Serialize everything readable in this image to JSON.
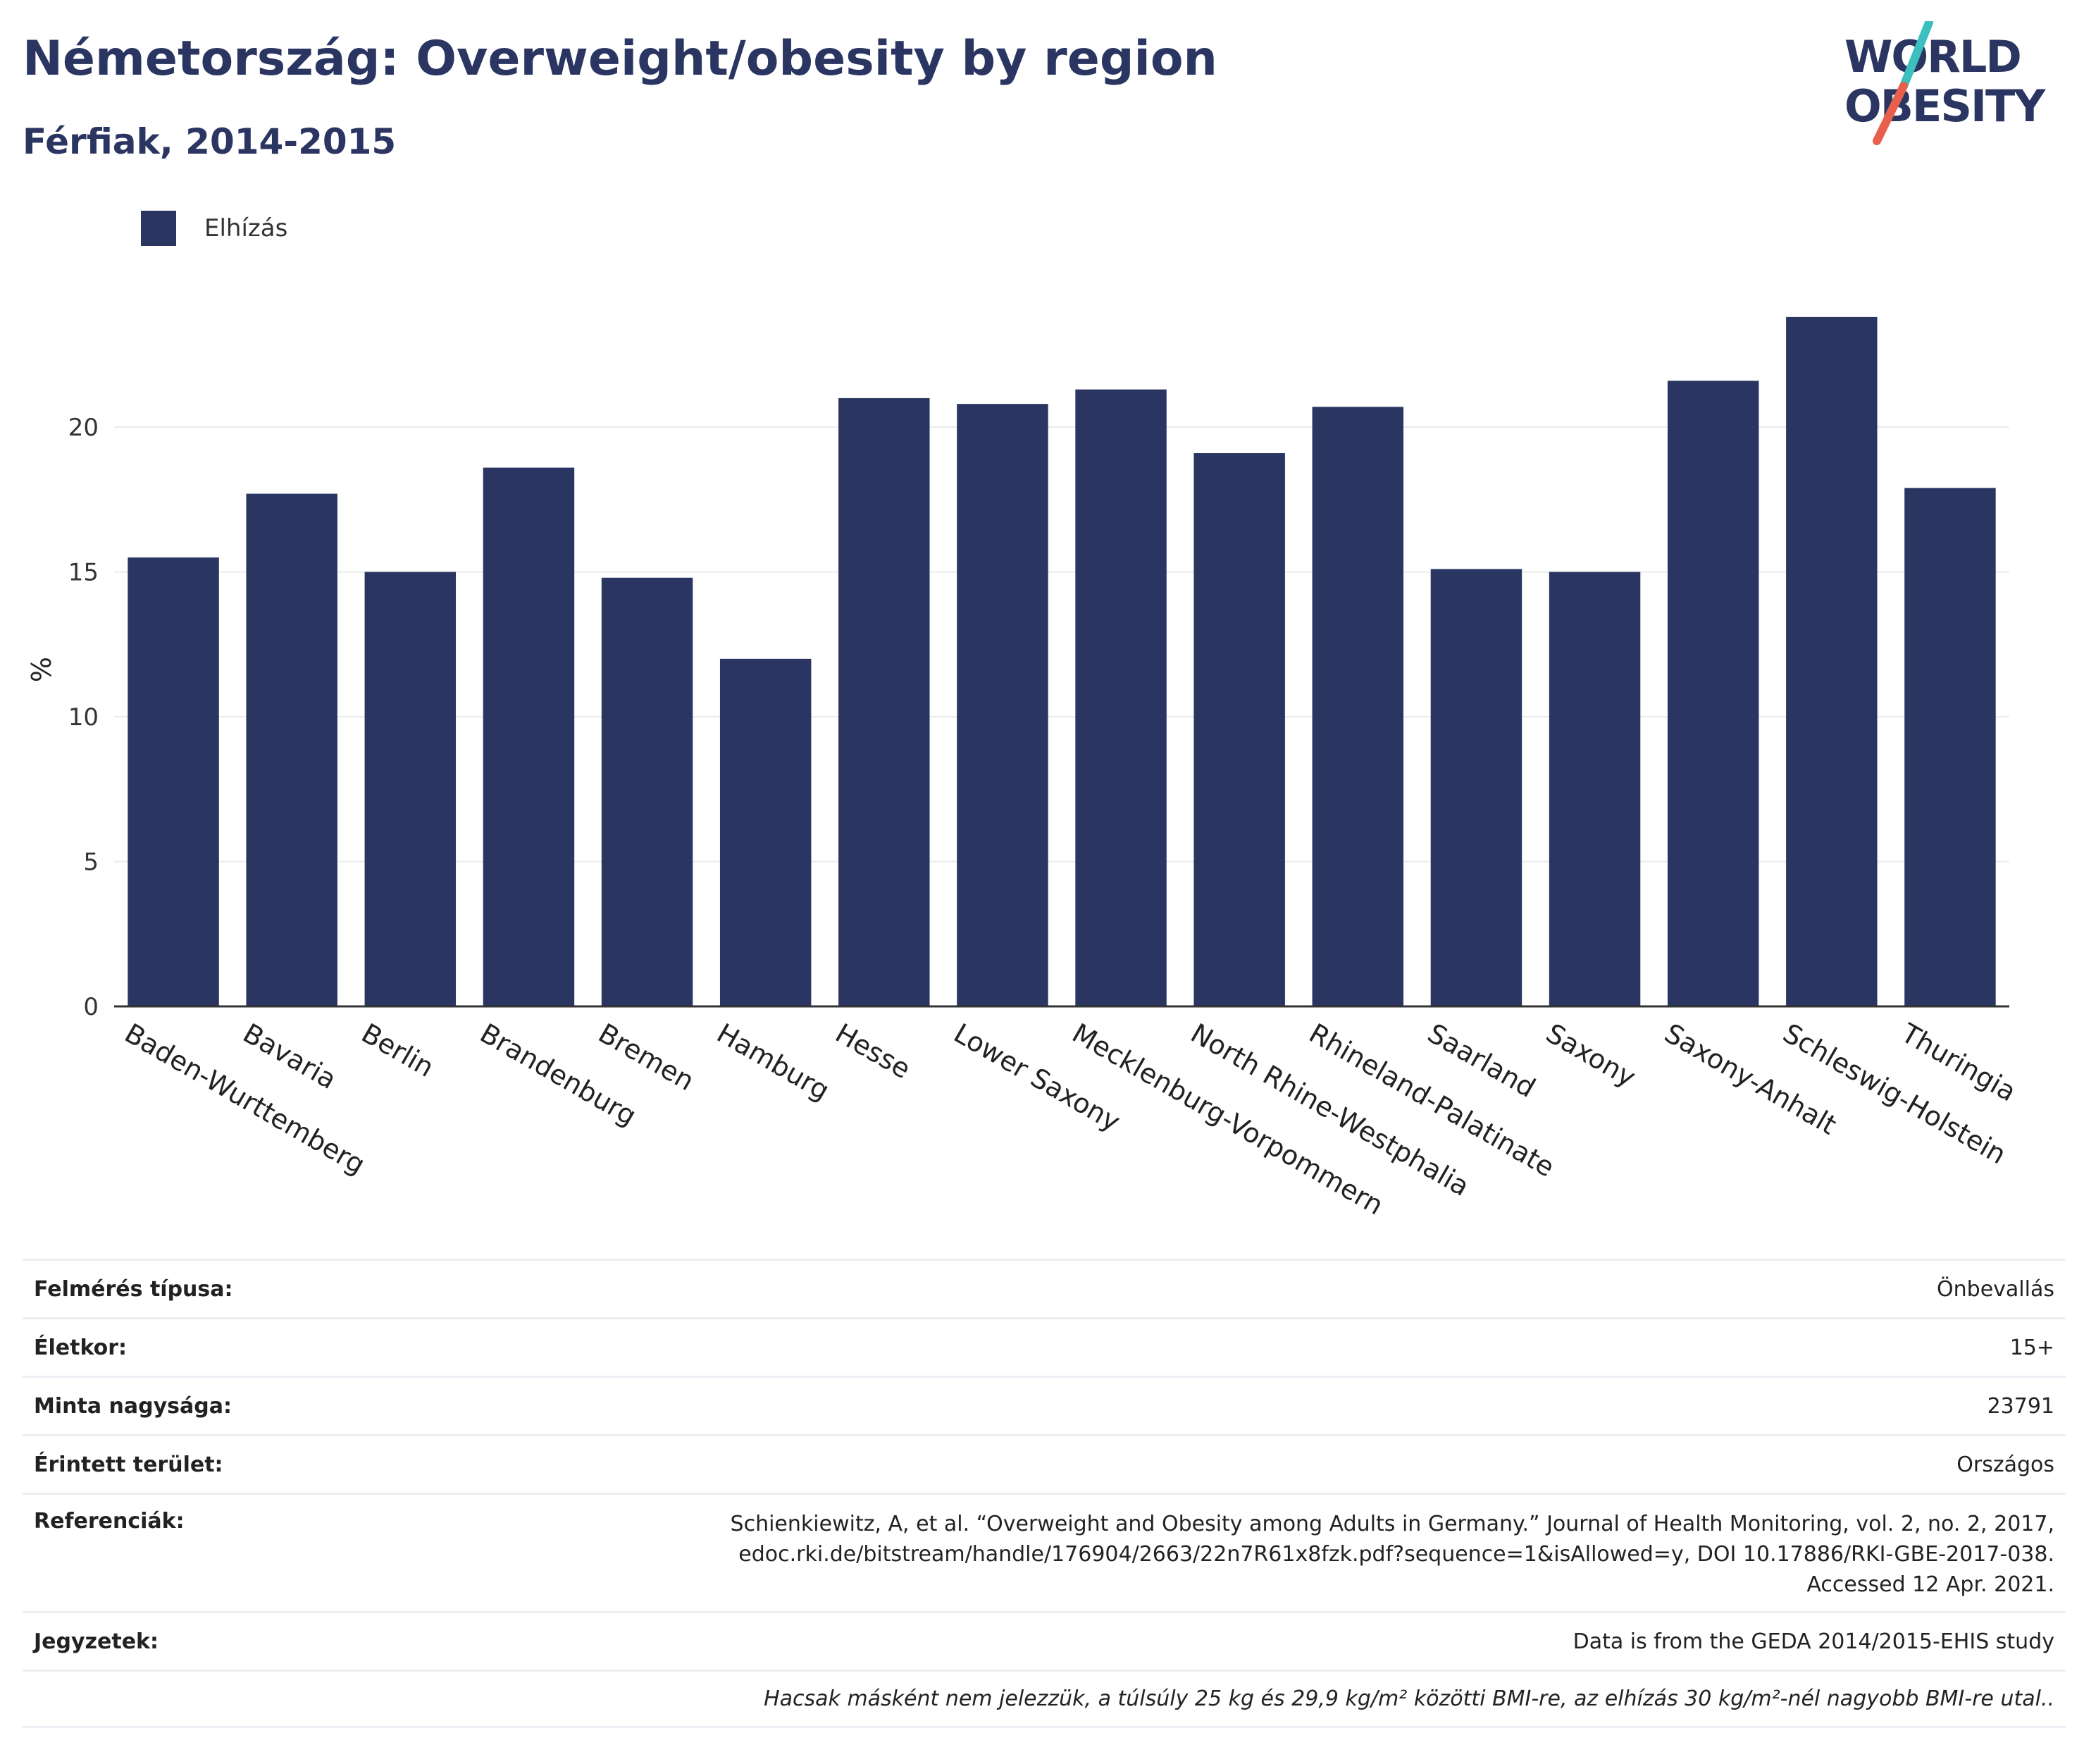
{
  "header": {
    "title": "Németország: Overweight/obesity by region",
    "subtitle": "Férfiak, 2014-2015"
  },
  "logo": {
    "line1": "WORLD",
    "line2": "OBESITY",
    "colors": {
      "text": "#2a3562",
      "slash_top": "#3bbfbf",
      "slash_bottom": "#e8604c"
    }
  },
  "legend": {
    "label": "Elhízás"
  },
  "colors": {
    "bar": "#2a3562",
    "grid": "#ebebeb",
    "axis": "#333333"
  },
  "chart_data": {
    "type": "bar",
    "categories": [
      "Baden-Wurttemberg",
      "Bavaria",
      "Berlin",
      "Brandenburg",
      "Bremen",
      "Hamburg",
      "Hesse",
      "Lower Saxony",
      "Mecklenburg-Vorpommern",
      "North Rhine-Westphalia",
      "Rhineland-Palatinate",
      "Saarland",
      "Saxony",
      "Saxony-Anhalt",
      "Schleswig-Holstein",
      "Thuringia"
    ],
    "series": [
      {
        "name": "Elhízás",
        "values": [
          15.5,
          17.7,
          15.0,
          18.6,
          14.8,
          12.0,
          21.0,
          20.8,
          21.3,
          19.1,
          20.7,
          15.1,
          15.0,
          21.6,
          23.8,
          17.9
        ]
      }
    ],
    "ylabel": "%",
    "yticks": [
      0,
      5,
      10,
      15,
      20
    ],
    "ylim": [
      0,
      25.5
    ],
    "grid": true,
    "legend_position": "top-left"
  },
  "info": {
    "survey_type_label": "Felmérés típusa:",
    "survey_type_value": "Önbevallás",
    "age_label": "Életkor:",
    "age_value": "15+",
    "sample_label": "Minta nagysága:",
    "sample_value": "23791",
    "area_label": "Érintett terület:",
    "area_value": "Országos",
    "refs_label": "Referenciák:",
    "refs_line1": "Schienkiewitz, A, et al. “Overweight and Obesity among Adults in Germany.” Journal of Health Monitoring, vol. 2, no. 2, 2017,",
    "refs_line2": "edoc.rki.de/bitstream/handle/176904/2663/22n7R61x8fzk.pdf?sequence=1&isAllowed=y, DOI 10.17886/RKI-GBE-2017-038.",
    "refs_line3": "Accessed 12 Apr. 2021.",
    "notes_label": "Jegyzetek:",
    "notes_value": "Data is from the GEDA 2014/2015-EHIS study",
    "footnote": "Hacsak másként nem jelezzük, a túlsúly 25 kg és 29,9 kg/m² közötti BMI-re, az elhízás 30 kg/m²-nél nagyobb BMI-re utal.."
  }
}
